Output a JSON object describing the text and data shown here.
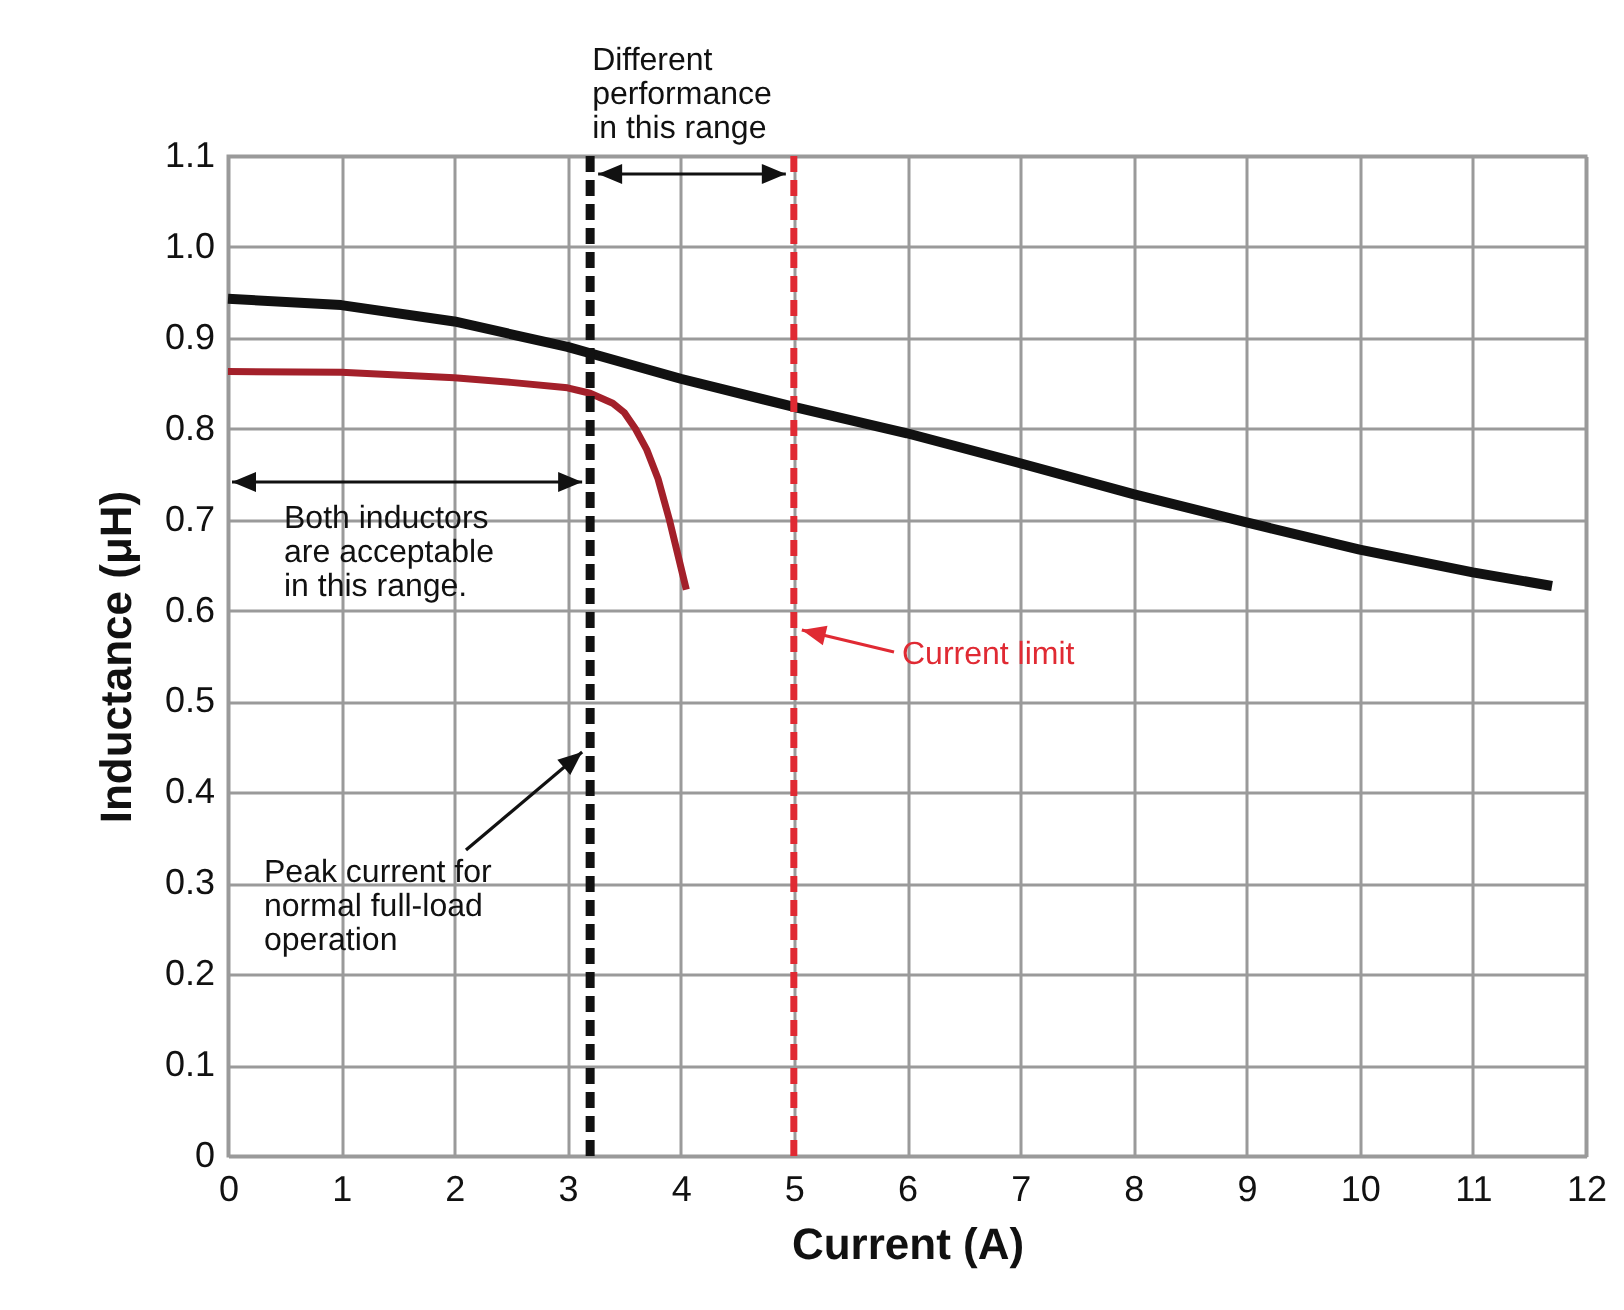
{
  "chart_data": {
    "type": "line",
    "xlabel": "Current (A)",
    "ylabel": "Inductance (μH)",
    "xlim": [
      0,
      12
    ],
    "ylim": [
      0,
      1.1
    ],
    "xticks": [
      0,
      1,
      2,
      3,
      4,
      5,
      6,
      7,
      8,
      9,
      10,
      11,
      12
    ],
    "yticks": [
      0,
      0.1,
      0.2,
      0.3,
      0.4,
      0.5,
      0.6,
      0.7,
      0.8,
      0.9,
      {
        "value": 1,
        "label": "1.0"
      },
      1.1
    ],
    "grid": true,
    "legend": false,
    "marker": "none",
    "line_style": "solid",
    "series": [
      {
        "color": "#111111",
        "x": [
          0,
          1,
          2,
          3,
          3.2,
          4,
          5,
          6,
          7,
          8,
          9,
          10,
          11,
          11.7
        ],
        "values": [
          0.943,
          0.936,
          0.918,
          0.89,
          0.883,
          0.855,
          0.824,
          0.795,
          0.762,
          0.728,
          0.697,
          0.667,
          0.642,
          0.627
        ]
      },
      {
        "color": "#a3202a",
        "x": [
          0,
          1,
          2,
          2.5,
          3,
          3.2,
          3.4,
          3.5,
          3.6,
          3.7,
          3.8,
          3.9,
          4.05
        ],
        "values": [
          0.863,
          0.862,
          0.856,
          0.851,
          0.845,
          0.839,
          0.828,
          0.818,
          0.8,
          0.777,
          0.745,
          0.7,
          0.623
        ]
      }
    ],
    "ref_lines": [
      {
        "axis": "x",
        "value": 3.2,
        "label": "Peak current for\nnormal full-load\noperation",
        "color": "#111111",
        "line_style": "dashed"
      },
      {
        "axis": "x",
        "value": 5,
        "label": "Current limit",
        "color": "#e02a33",
        "line_style": "dashed"
      }
    ],
    "annotations": [
      "Different\nperformance\nin this range",
      "Both inductors\nare acceptable\nin this range."
    ]
  }
}
